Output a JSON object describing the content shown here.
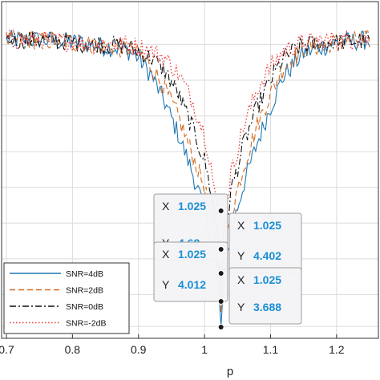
{
  "chart_data": {
    "type": "line",
    "title": "",
    "xlabel": "p",
    "ylabel": "",
    "xlim": [
      0.7,
      1.25
    ],
    "x_ticks": [
      "0.7",
      "0.8",
      "0.9",
      "1",
      "1.1",
      "1.2"
    ],
    "x_tick_values": [
      0.7,
      0.8,
      0.9,
      1.0,
      1.1,
      1.2
    ],
    "ylim": [
      3.6,
      10.6
    ],
    "y_gridlines": [
      3.688,
      4.4,
      5.2,
      6.0,
      6.8,
      7.6,
      8.4,
      9.2,
      10.0
    ],
    "grid": true,
    "legend_position": "bottom-left",
    "series": [
      {
        "name": "SNR=4dB",
        "color": "#1f77b4",
        "style": "solid",
        "points": [
          [
            0.7,
            10.1
          ],
          [
            0.75,
            10.1
          ],
          [
            0.8,
            10.05
          ],
          [
            0.85,
            9.95
          ],
          [
            0.88,
            9.9
          ],
          [
            0.9,
            9.7
          ],
          [
            0.92,
            9.3
          ],
          [
            0.94,
            8.7
          ],
          [
            0.96,
            8.0
          ],
          [
            0.98,
            7.2
          ],
          [
            1.0,
            6.3
          ],
          [
            1.01,
            5.6
          ],
          [
            1.02,
            4.9
          ],
          [
            1.025,
            3.688
          ],
          [
            1.03,
            4.9
          ],
          [
            1.04,
            5.8
          ],
          [
            1.06,
            6.9
          ],
          [
            1.08,
            7.8
          ],
          [
            1.1,
            8.6
          ],
          [
            1.12,
            9.3
          ],
          [
            1.15,
            9.8
          ],
          [
            1.2,
            10.05
          ],
          [
            1.25,
            10.1
          ]
        ]
      },
      {
        "name": "SNR=2dB",
        "color": "#d2691e",
        "style": "dashed",
        "points": [
          [
            0.7,
            10.1
          ],
          [
            0.75,
            10.1
          ],
          [
            0.8,
            10.05
          ],
          [
            0.85,
            9.95
          ],
          [
            0.88,
            9.9
          ],
          [
            0.9,
            9.8
          ],
          [
            0.92,
            9.5
          ],
          [
            0.94,
            9.0
          ],
          [
            0.96,
            8.4
          ],
          [
            0.98,
            7.6
          ],
          [
            1.0,
            6.8
          ],
          [
            1.01,
            6.1
          ],
          [
            1.02,
            5.2
          ],
          [
            1.025,
            4.012
          ],
          [
            1.03,
            5.2
          ],
          [
            1.04,
            6.2
          ],
          [
            1.06,
            7.3
          ],
          [
            1.08,
            8.2
          ],
          [
            1.1,
            8.9
          ],
          [
            1.12,
            9.5
          ],
          [
            1.15,
            9.9
          ],
          [
            1.2,
            10.05
          ],
          [
            1.25,
            10.1
          ]
        ]
      },
      {
        "name": "SNR=0dB",
        "color": "#111111",
        "style": "dashdot",
        "points": [
          [
            0.7,
            10.1
          ],
          [
            0.75,
            10.1
          ],
          [
            0.8,
            10.05
          ],
          [
            0.85,
            10.0
          ],
          [
            0.88,
            9.95
          ],
          [
            0.9,
            9.85
          ],
          [
            0.92,
            9.7
          ],
          [
            0.94,
            9.4
          ],
          [
            0.96,
            8.9
          ],
          [
            0.98,
            8.2
          ],
          [
            1.0,
            7.4
          ],
          [
            1.01,
            6.7
          ],
          [
            1.02,
            5.7
          ],
          [
            1.025,
            4.402
          ],
          [
            1.03,
            5.7
          ],
          [
            1.04,
            6.7
          ],
          [
            1.06,
            7.8
          ],
          [
            1.08,
            8.6
          ],
          [
            1.1,
            9.2
          ],
          [
            1.12,
            9.7
          ],
          [
            1.15,
            10.0
          ],
          [
            1.2,
            10.05
          ],
          [
            1.25,
            10.1
          ]
        ]
      },
      {
        "name": "SNR=-2dB",
        "color": "#e8393a",
        "style": "dotted",
        "points": [
          [
            0.7,
            10.1
          ],
          [
            0.75,
            10.1
          ],
          [
            0.8,
            10.05
          ],
          [
            0.85,
            10.0
          ],
          [
            0.88,
            10.0
          ],
          [
            0.9,
            9.95
          ],
          [
            0.92,
            9.85
          ],
          [
            0.94,
            9.7
          ],
          [
            0.96,
            9.35
          ],
          [
            0.98,
            8.8
          ],
          [
            1.0,
            8.0
          ],
          [
            1.01,
            7.3
          ],
          [
            1.02,
            6.1
          ],
          [
            1.025,
            4.68
          ],
          [
            1.03,
            6.1
          ],
          [
            1.04,
            7.1
          ],
          [
            1.06,
            8.2
          ],
          [
            1.08,
            9.0
          ],
          [
            1.1,
            9.5
          ],
          [
            1.12,
            9.85
          ],
          [
            1.15,
            10.05
          ],
          [
            1.2,
            10.1
          ],
          [
            1.25,
            10.1
          ]
        ]
      }
    ],
    "datatips": [
      {
        "x_label": "X",
        "x_value": "1.025",
        "y_label": "Y",
        "y_value": "4.68",
        "x": 1.025,
        "y": 4.68
      },
      {
        "x_label": "X",
        "x_value": "1.025",
        "y_label": "Y",
        "y_value": "4.402",
        "x": 1.025,
        "y": 4.402
      },
      {
        "x_label": "X",
        "x_value": "1.025",
        "y_label": "Y",
        "y_value": "4.012",
        "x": 1.025,
        "y": 4.012
      },
      {
        "x_label": "X",
        "x_value": "1.025",
        "y_label": "Y",
        "y_value": "3.688",
        "x": 1.025,
        "y": 3.688
      }
    ]
  }
}
